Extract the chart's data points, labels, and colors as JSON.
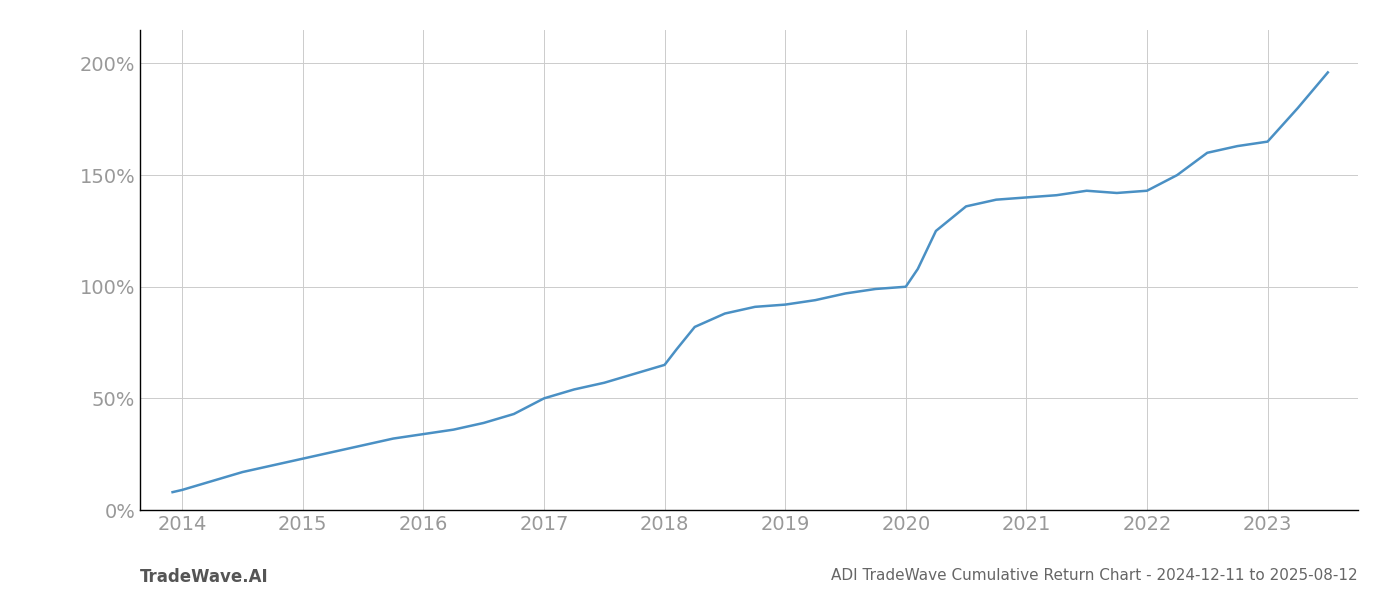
{
  "title": "ADI TradeWave Cumulative Return Chart - 2024-12-11 to 2025-08-12",
  "watermark": "TradeWave.AI",
  "line_color": "#4a90c4",
  "background_color": "#ffffff",
  "grid_color": "#cccccc",
  "x_years": [
    2014,
    2015,
    2016,
    2017,
    2018,
    2019,
    2020,
    2021,
    2022,
    2023
  ],
  "x_values": [
    2013.92,
    2014.0,
    2014.25,
    2014.5,
    2014.75,
    2015.0,
    2015.25,
    2015.5,
    2015.75,
    2016.0,
    2016.25,
    2016.5,
    2016.75,
    2017.0,
    2017.25,
    2017.5,
    2017.75,
    2018.0,
    2018.1,
    2018.25,
    2018.5,
    2018.75,
    2019.0,
    2019.25,
    2019.5,
    2019.75,
    2020.0,
    2020.1,
    2020.25,
    2020.5,
    2020.75,
    2021.0,
    2021.25,
    2021.5,
    2021.75,
    2022.0,
    2022.25,
    2022.5,
    2022.75,
    2023.0,
    2023.25,
    2023.5
  ],
  "y_values": [
    8,
    9,
    13,
    17,
    20,
    23,
    26,
    29,
    32,
    34,
    36,
    39,
    43,
    50,
    54,
    57,
    61,
    65,
    72,
    82,
    88,
    91,
    92,
    94,
    97,
    99,
    100,
    108,
    125,
    136,
    139,
    140,
    141,
    143,
    142,
    143,
    150,
    160,
    163,
    165,
    180,
    196
  ],
  "ylim": [
    0,
    215
  ],
  "xlim": [
    2013.65,
    2023.75
  ],
  "yticks": [
    0,
    50,
    100,
    150,
    200
  ],
  "ytick_labels": [
    "0%",
    "50%",
    "100%",
    "150%",
    "200%"
  ],
  "line_width": 1.8,
  "text_color": "#999999",
  "spine_color": "#000000",
  "title_color": "#666666",
  "watermark_color": "#555555",
  "title_fontsize": 11,
  "watermark_fontsize": 12,
  "tick_fontsize": 14
}
